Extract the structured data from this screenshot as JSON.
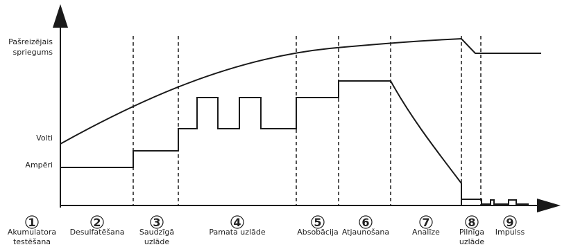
{
  "diagram": {
    "y_labels": {
      "voltage_line1": "Pašreizējais",
      "voltage_line2": "spriegums",
      "volts": "Volti",
      "amps": "Ampēri"
    },
    "stages": [
      {
        "number": "1",
        "name_line1": "Akumulatora",
        "name_line2": "testēšana"
      },
      {
        "number": "2",
        "name_line1": "Desulfatēšana",
        "name_line2": ""
      },
      {
        "number": "3",
        "name_line1": "Saudzīgā",
        "name_line2": "uzlāde"
      },
      {
        "number": "4",
        "name_line1": "Pamata uzlāde",
        "name_line2": ""
      },
      {
        "number": "5",
        "name_line1": "Absobācija",
        "name_line2": ""
      },
      {
        "number": "6",
        "name_line1": "Atjaunošana",
        "name_line2": ""
      },
      {
        "number": "7",
        "name_line1": "Analīze",
        "name_line2": ""
      },
      {
        "number": "8",
        "name_line1": "Pilnīga",
        "name_line2": "uzlāde"
      },
      {
        "number": "9",
        "name_line1": "Impulss",
        "name_line2": ""
      }
    ],
    "colors": {
      "line": "#1a1a1a",
      "text": "#222222"
    }
  }
}
